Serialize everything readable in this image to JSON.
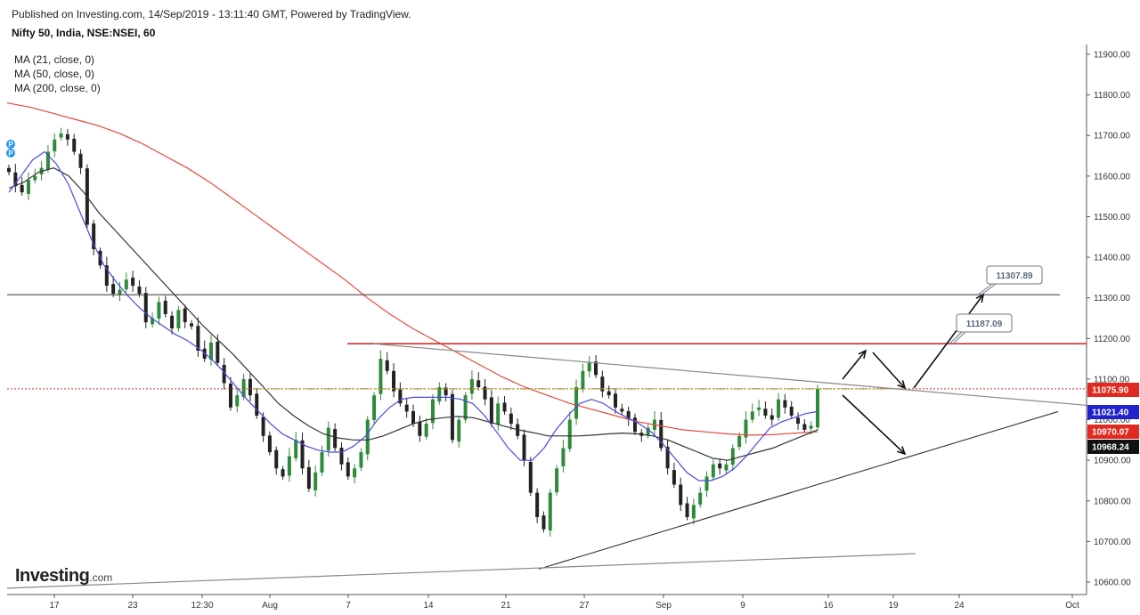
{
  "header": {
    "published": "Published on Investing.com, 14/Sep/2019 - 13:11:40 GMT, Powered by TradingView.",
    "symbol": "Nifty 50, India, NSE:NSEI, 60"
  },
  "indicators": [
    "MA (21, close, 0)",
    "MA (50, close, 0)",
    "MA (200, close, 0)"
  ],
  "logo": {
    "main": "Investing",
    "sub": ".com"
  },
  "colors": {
    "up_candle": "#2e8b3a",
    "down_candle": "#222222",
    "ma21": "#4a4ae0",
    "ma50": "#333333",
    "ma200": "#e8483a",
    "resistance": "#d62b2b",
    "dotted_price": "#c0392b",
    "neckline": "#9aab1f"
  },
  "chart_data": {
    "type": "candlestick",
    "y_axis": {
      "range": [
        10580,
        11950
      ],
      "ticks": [
        "11900.00",
        "11800.00",
        "11700.00",
        "11600.00",
        "11500.00",
        "11400.00",
        "11300.00",
        "11200.00",
        "11100.00",
        "11000.00",
        "10900.00",
        "10800.00",
        "10700.00",
        "10600.00"
      ]
    },
    "x_axis": {
      "ticks": [
        "17",
        "23",
        "12:30",
        "Aug",
        "7",
        "14",
        "21",
        "27",
        "Sep",
        "9",
        "16",
        "19",
        "24",
        "Oct"
      ]
    },
    "price_tags": [
      {
        "label": "11075.90",
        "value": 11075.9,
        "color": "#e0291f"
      },
      {
        "label": "11021.40",
        "value": 11021.4,
        "color": "#2222cc"
      },
      {
        "label": "10970.07",
        "value": 10970.07,
        "color": "#e0291f"
      },
      {
        "label": "10968.24",
        "value": 10968.24,
        "color": "#111111"
      }
    ],
    "annotations": [
      {
        "label": "11307.89",
        "value": 11307.89
      },
      {
        "label": "11187.09",
        "value": 11187.09
      }
    ],
    "horizontal_levels": [
      11307.89,
      11187.09,
      11075.9
    ],
    "closes": [
      11610,
      11575,
      11560,
      11590,
      11600,
      11620,
      11660,
      11690,
      11705,
      11690,
      11660,
      11620,
      11480,
      11420,
      11380,
      11330,
      11310,
      11320,
      11345,
      11330,
      11310,
      11240,
      11250,
      11290,
      11260,
      11225,
      11270,
      11240,
      11230,
      11170,
      11150,
      11190,
      11140,
      11090,
      11030,
      11060,
      11100,
      11060,
      11010,
      10960,
      10920,
      10880,
      10860,
      10910,
      10950,
      10880,
      10830,
      10870,
      10920,
      10980,
      10930,
      10890,
      10860,
      10880,
      10920,
      11000,
      11060,
      11150,
      11120,
      11070,
      11040,
      11020,
      10990,
      10960,
      10990,
      11050,
      11080,
      11060,
      10950,
      11000,
      11060,
      11100,
      11080,
      11050,
      10990,
      11040,
      11020,
      10990,
      10960,
      10900,
      10820,
      10760,
      10730,
      10820,
      10880,
      10930,
      11000,
      11080,
      11120,
      11140,
      11110,
      11070,
      11060,
      11030,
      11020,
      11000,
      10970,
      10960,
      10980,
      11000,
      10930,
      10880,
      10840,
      10790,
      10760,
      10790,
      10820,
      10860,
      10890,
      10880,
      10890,
      10930,
      10960,
      11000,
      11020,
      11030,
      11010,
      11000,
      11050,
      11030,
      11010,
      10990,
      10975,
      10985,
      11076
    ],
    "ma21": [
      11560,
      11600,
      11640,
      11660,
      11630,
      11580,
      11510,
      11440,
      11380,
      11340,
      11305,
      11275,
      11250,
      11230,
      11210,
      11195,
      11175,
      11150,
      11120,
      11085,
      11050,
      11020,
      10990,
      10965,
      10950,
      10935,
      10925,
      10920,
      10920,
      10935,
      10960,
      11000,
      11030,
      11050,
      11055,
      11055,
      11055,
      11055,
      11050,
      11040,
      11010,
      10970,
      10930,
      10900,
      10900,
      10930,
      10975,
      11010,
      11040,
      11050,
      11040,
      11020,
      11005,
      10990,
      10970,
      10940,
      10905,
      10870,
      10850,
      10850,
      10860,
      10880,
      10910,
      10945,
      10980,
      10995,
      11005,
      11015,
      11020
    ],
    "ma50": [
      11570,
      11585,
      11610,
      11620,
      11600,
      11560,
      11510,
      11470,
      11430,
      11390,
      11350,
      11310,
      11270,
      11230,
      11195,
      11160,
      11120,
      11080,
      11040,
      11010,
      10985,
      10965,
      10955,
      10950,
      10950,
      10960,
      10975,
      10990,
      11000,
      11005,
      11008,
      11005,
      10995,
      10985,
      10975,
      10968,
      10960,
      10960,
      10960,
      10962,
      10965,
      10967,
      10965,
      10960,
      10950,
      10935,
      10920,
      10905,
      10900,
      10910,
      10920,
      10930,
      10945,
      10960,
      10975
    ],
    "ma200": [
      11780,
      11770,
      11755,
      11740,
      11725,
      11705,
      11680,
      11650,
      11620,
      11585,
      11545,
      11505,
      11465,
      11425,
      11385,
      11345,
      11300,
      11260,
      11225,
      11195,
      11165,
      11135,
      11105,
      11080,
      11060,
      11040,
      11025,
      11010,
      10995,
      10985,
      10975,
      10970,
      10965,
      10962,
      10963,
      10967,
      10970
    ]
  }
}
